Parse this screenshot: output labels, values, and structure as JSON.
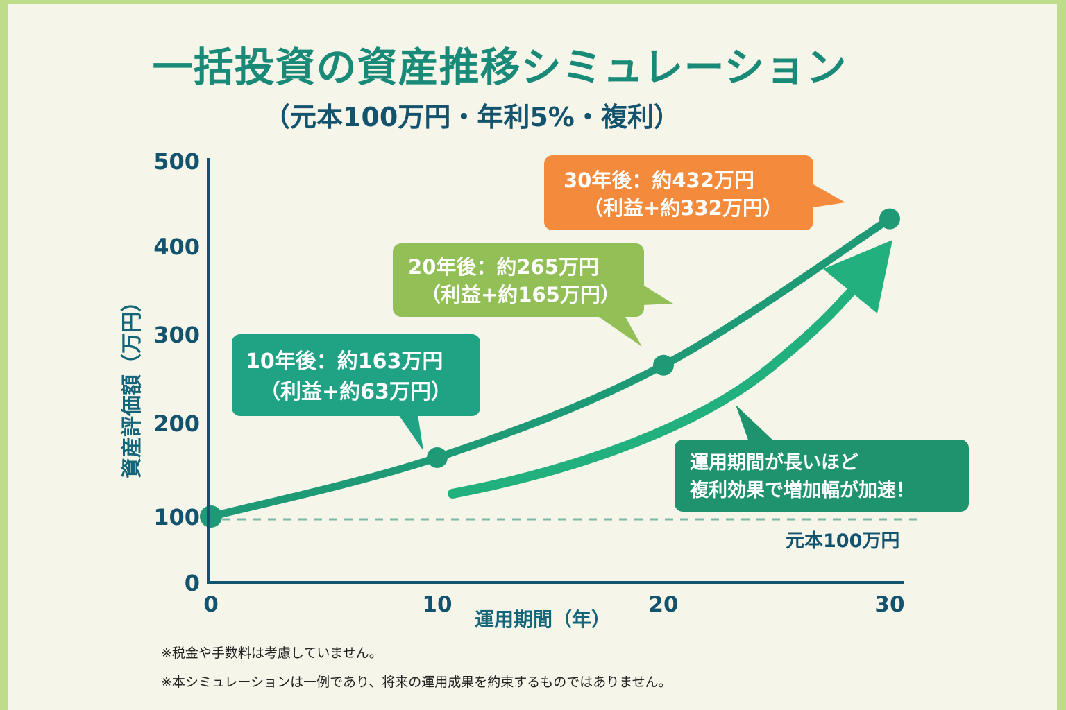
{
  "header": {
    "title": "一括投資の資産推移シミュレーション",
    "subtitle": "（元本100万円・年利5%・複利）"
  },
  "colors": {
    "border": "#bfdc8a",
    "background": "#f6f5e9",
    "axis": "#14536e",
    "line": "#1f9a76",
    "arrow": "#22b07f",
    "callout_30": "#f38a3c",
    "callout_20": "#93bf57",
    "callout_10": "#1fa384",
    "callout_note": "#1f936d",
    "principal_line": "#7fb8a6"
  },
  "chart_data": {
    "type": "line",
    "title": "一括投資の資産推移シミュレーション",
    "subtitle": "（元本100万円・年利5%・複利）",
    "xlabel": "運用期間（年）",
    "ylabel": "資産評価額（万円）",
    "xlim": [
      0,
      30
    ],
    "ylim": [
      0,
      500
    ],
    "x_ticks": [
      "0",
      "10",
      "20",
      "30"
    ],
    "y_ticks": [
      "0",
      "100",
      "200",
      "300",
      "400",
      "500"
    ],
    "grid": false,
    "series": [
      {
        "name": "資産評価額",
        "x": [
          0,
          10,
          20,
          30
        ],
        "values": [
          100,
          163,
          265,
          432
        ]
      }
    ],
    "reference_line": {
      "value": 100,
      "label": "元本100万円"
    },
    "annotations": [
      {
        "x": 10,
        "line1": "10年後：約163万円",
        "line2": "（利益+約63万円）"
      },
      {
        "x": 20,
        "line1": "20年後：約265万円",
        "line2": "（利益+約165万円）"
      },
      {
        "x": 30,
        "line1": "30年後：約432万円",
        "line2": "（利益+約332万円）"
      }
    ],
    "note": {
      "line1": "運用期間が長いほど",
      "line2": "複利効果で増加幅が加速！"
    }
  },
  "footnotes": [
    "※税金や手数料は考慮していません。",
    "※本シミュレーションは一例であり、将来の運用成果を約束するものではありません。"
  ]
}
